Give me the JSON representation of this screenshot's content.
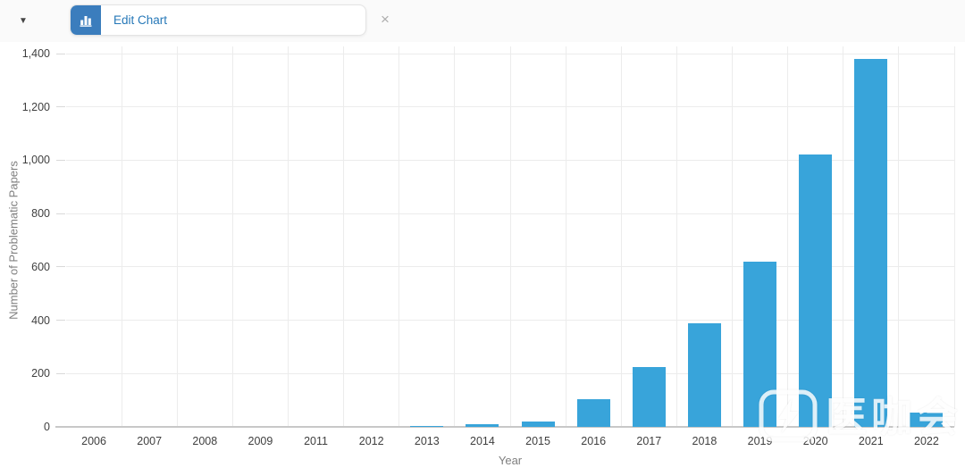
{
  "toolbar": {
    "caret_icon": "▼",
    "edit_chart_label": "Edit Chart",
    "close_icon": "×"
  },
  "watermark": {
    "text": "医咖会"
  },
  "chart_data": {
    "type": "bar",
    "title": "",
    "xlabel": "Year",
    "ylabel": "Number of Problematic Papers",
    "categories": [
      "2006",
      "2007",
      "2008",
      "2009",
      "2011",
      "2012",
      "2013",
      "2014",
      "2015",
      "2016",
      "2017",
      "2018",
      "2019",
      "2020",
      "2021",
      "2022"
    ],
    "values": [
      0,
      0,
      0,
      0,
      0,
      0,
      5,
      10,
      20,
      105,
      225,
      390,
      620,
      1020,
      1380,
      55
    ],
    "ylim": [
      0,
      1400
    ],
    "ytick_values": [
      0,
      200,
      400,
      600,
      800,
      1000,
      1200,
      1400
    ],
    "ytick_labels": [
      "0",
      "200",
      "400",
      "600",
      "800",
      "1,000",
      "1,200",
      "1,400"
    ],
    "grid": true,
    "legend_position": "none",
    "bar_color": "#38a4da",
    "grid_color": "#ececec",
    "axis_line_color": "#c8c8c8",
    "tick_label_color": "#3f3f3f",
    "axis_title_color": "#7f7f7f"
  }
}
